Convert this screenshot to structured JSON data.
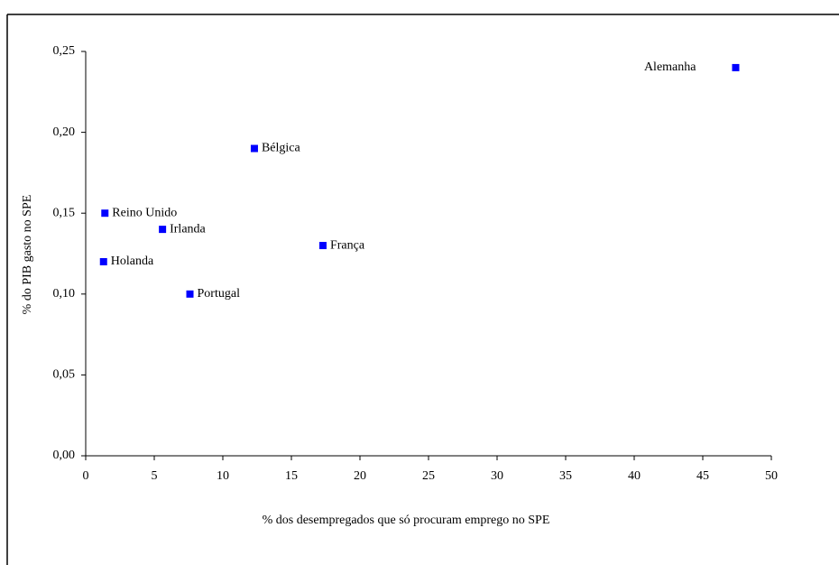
{
  "chart_data": {
    "type": "scatter",
    "x_label": "% dos desempregados que só procuram emprego no SPE",
    "y_label": "% do PIB gasto no SPE",
    "labels": [
      "Alemanha",
      "Bélgica",
      "Reino Unido",
      "Irlanda",
      "França",
      "Holanda",
      "Portugal"
    ],
    "x": [
      47.4,
      12.3,
      1.4,
      5.6,
      17.3,
      1.3,
      7.6
    ],
    "values": [
      0.24,
      0.19,
      0.15,
      0.14,
      0.13,
      0.12,
      0.1
    ],
    "color": "#0000ff",
    "xlim": [
      0,
      50
    ],
    "xticks": [
      0,
      5,
      10,
      15,
      20,
      25,
      30,
      35,
      40,
      45,
      50
    ],
    "ylim": [
      0,
      0.25
    ],
    "yticks": [
      {
        "value": 0,
        "label": "0,00"
      },
      {
        "value": 0.05,
        "label": "0,05"
      },
      {
        "value": 0.1,
        "label": "0,10"
      },
      {
        "value": 0.15,
        "label": "0,15"
      },
      {
        "value": 0.2,
        "label": "0,20"
      },
      {
        "value": 0.25,
        "label": "0,25"
      }
    ],
    "grid": false
  }
}
